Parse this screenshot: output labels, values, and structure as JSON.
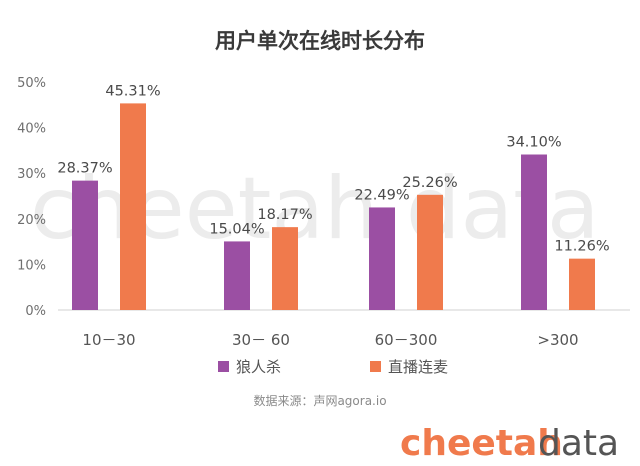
{
  "chart_data": {
    "type": "bar",
    "title": "用户单次在线时长分布",
    "categories": [
      "10－30",
      "30－ 60",
      "60－300",
      ">300"
    ],
    "series": [
      {
        "name": "狼人杀",
        "values": [
          28.37,
          15.04,
          22.49,
          34.1
        ],
        "labels": [
          "28.37%",
          "15.04%",
          "22.49%",
          "34.10%"
        ]
      },
      {
        "name": "直播连麦",
        "values": [
          45.31,
          18.17,
          25.26,
          11.26
        ],
        "labels": [
          "45.31%",
          "18.17%",
          "25.26%",
          "11.26%"
        ]
      }
    ],
    "yticks": [
      "0%",
      "10%",
      "20%",
      "30%",
      "40%",
      "50%"
    ],
    "ylim": [
      0,
      50
    ],
    "grid": false,
    "legend": "bottom",
    "colors": [
      "#9b4fa3",
      "#f07a4c"
    ]
  },
  "source": "数据来源：声网agora.io",
  "watermark": "cheetah data",
  "brand": {
    "part1": "cheetah",
    "part2": "data",
    "accent": "#f07a4c"
  }
}
